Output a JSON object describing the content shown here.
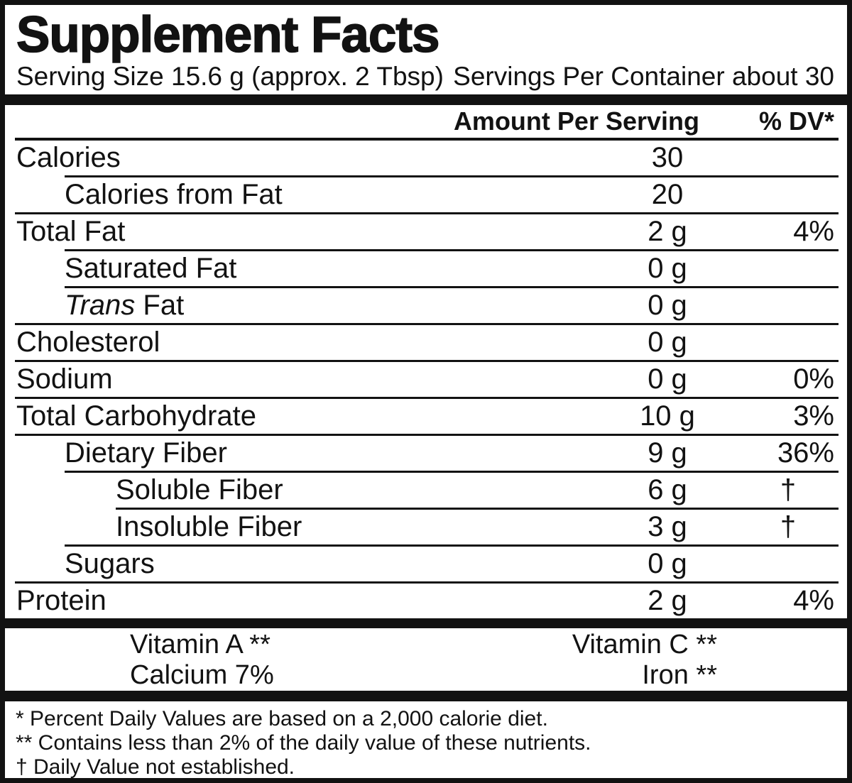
{
  "colors": {
    "ink": "#121212",
    "background": "#ffffff"
  },
  "label": {
    "title": "Supplement Facts",
    "serving_size": "Serving Size 15.6 g (approx. 2 Tbsp)",
    "servings_per_container": "Servings Per Container about 30",
    "columns": {
      "amount": "Amount Per Serving",
      "dv": "% DV*"
    },
    "rows": [
      {
        "label": "Calories",
        "amount": "30",
        "dv": ""
      },
      {
        "label": "Calories from Fat",
        "amount": "20",
        "dv": ""
      },
      {
        "label": "Total Fat",
        "amount": "2 g",
        "dv": "4%"
      },
      {
        "label": "Saturated Fat",
        "amount": "0 g",
        "dv": ""
      },
      {
        "label_italic": "Trans",
        "label": " Fat",
        "amount": "0 g",
        "dv": ""
      },
      {
        "label": "Cholesterol",
        "amount": "0 g",
        "dv": ""
      },
      {
        "label": "Sodium",
        "amount": "0 g",
        "dv": "0%"
      },
      {
        "label": "Total Carbohydrate",
        "amount": "10 g",
        "dv": "3%"
      },
      {
        "label": "Dietary Fiber",
        "amount": "9 g",
        "dv": "36%"
      },
      {
        "label": "Soluble Fiber",
        "amount": "6 g",
        "dv": "†"
      },
      {
        "label": "Insoluble Fiber",
        "amount": "3 g",
        "dv": "†"
      },
      {
        "label": "Sugars",
        "amount": "0 g",
        "dv": ""
      },
      {
        "label": "Protein",
        "amount": "2 g",
        "dv": "4%"
      }
    ],
    "micronutrients": [
      {
        "left": "Vitamin A **",
        "right": "Vitamin C **"
      },
      {
        "left": "Calcium 7%",
        "right": "Iron **"
      }
    ],
    "footnotes": [
      "* Percent Daily Values are based on a 2,000 calorie diet.",
      "** Contains less than 2% of the daily value of these nutrients.",
      "† Daily Value not established."
    ]
  }
}
